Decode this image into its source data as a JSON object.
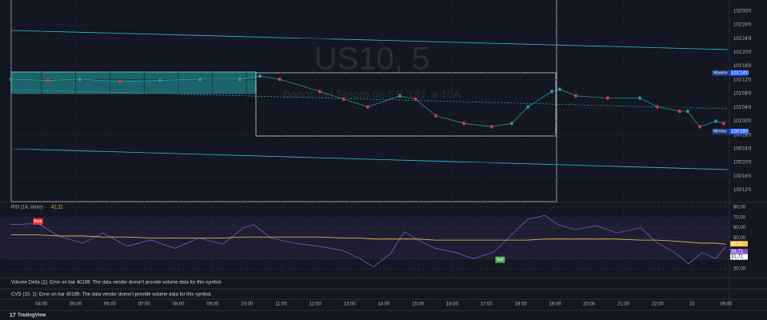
{
  "chart_data": [
    {
      "type": "line",
      "title": "US10, 5",
      "subtitle": "Bonos del Tesoro de EE. UU. a 10A",
      "x": [
        3.11,
        4.19,
        5.12,
        6.29,
        7.46,
        8.63,
        9.79,
        10.38,
        10.96,
        12.13,
        12.83,
        13.53,
        14.47,
        14.93,
        15.52,
        16.34,
        17.15,
        17.74,
        18.21,
        18.91,
        19.14,
        19.61,
        20.54,
        21.48,
        21.99,
        22.64,
        22.88,
        23.23,
        23.7,
        23.93
      ],
      "series": [
        {
          "color": "#26a69a",
          "values": [
            101.38,
            101.37,
            101.38,
            101.36,
            101.37,
            101.38,
            101.38,
            101.41,
            101.38,
            101.27,
            101.2,
            101.13,
            101.23,
            101.2,
            101.05,
            100.98,
            100.95,
            100.98,
            101.13,
            101.27,
            101.29,
            101.23,
            101.21,
            101.21,
            101.13,
            101.09,
            101.09,
            100.95,
            101.0,
            100.98
          ]
        }
      ],
      "down_color": "#f23645",
      "xlim": [
        3.07,
        24.05
      ],
      "xticks": [
        {
          "value": 4,
          "label": "04:00"
        },
        {
          "value": 5,
          "label": "05:00"
        },
        {
          "value": 6,
          "label": "06:00"
        },
        {
          "value": 7,
          "label": "07:00"
        },
        {
          "value": 8,
          "label": "08:00"
        },
        {
          "value": 9,
          "label": "09:00"
        },
        {
          "value": 10,
          "label": "10:00"
        },
        {
          "value": 11,
          "label": "11:00"
        },
        {
          "value": 12,
          "label": "12:00"
        },
        {
          "value": 13,
          "label": "13:00"
        },
        {
          "value": 14,
          "label": "14:00"
        },
        {
          "value": 15,
          "label": "15:00"
        },
        {
          "value": 16,
          "label": "16:00"
        },
        {
          "value": 17,
          "label": "17:00"
        },
        {
          "value": 18,
          "label": "18:00"
        },
        {
          "value": 19,
          "label": "19:00"
        },
        {
          "value": 20,
          "label": "20:00"
        },
        {
          "value": 21,
          "label": "21:00"
        },
        {
          "value": 22,
          "label": "22:00"
        },
        {
          "value": 23,
          "label": "23"
        },
        {
          "value": 24,
          "label": "09:00"
        }
      ],
      "ylim": [
        100.27,
        102.1
      ],
      "yticks": [
        {
          "value": 102,
          "label": "102'00'0"
        },
        {
          "value": 101.875,
          "label": "101'28'0"
        },
        {
          "value": 101.75,
          "label": "101'24'0"
        },
        {
          "value": 101.625,
          "label": "101'20'0"
        },
        {
          "value": 101.5,
          "label": "101'16'0"
        },
        {
          "value": 101.375,
          "label": "101'12'0"
        },
        {
          "value": 101.25,
          "label": "101'08'0"
        },
        {
          "value": 101.125,
          "label": "101'04'0"
        },
        {
          "value": 101,
          "label": "101'00'0"
        },
        {
          "value": 100.875,
          "label": "100'28'0"
        },
        {
          "value": 100.75,
          "label": "100'24'0"
        },
        {
          "value": 100.625,
          "label": "100'20'0"
        },
        {
          "value": 100.5,
          "label": "100'16'0"
        },
        {
          "value": 100.375,
          "label": "100'12'0"
        }
      ],
      "price_labels": [
        {
          "name": "Máximo",
          "value": 101.4375,
          "label": "101'14'0"
        },
        {
          "name": "Mínimo",
          "value": 100.90625,
          "label": "100'29'0"
        }
      ],
      "grid": true
    },
    {
      "type": "line",
      "title": "RSI (14, close)",
      "legend_value": {
        "value": 42.11,
        "label": "42,11"
      },
      "x": [
        3.11,
        3.9,
        4.5,
        5.2,
        5.8,
        6.5,
        7.2,
        7.9,
        8.6,
        9.3,
        9.9,
        10.2,
        10.7,
        11.4,
        12.1,
        12.8,
        13.3,
        13.7,
        14.2,
        14.6,
        15.0,
        15.5,
        16.1,
        16.6,
        17.2,
        17.7,
        18.2,
        18.7,
        19.1,
        19.6,
        20.2,
        20.8,
        21.5,
        22.0,
        22.5,
        22.9,
        23.3,
        23.7,
        24.0
      ],
      "series": [
        {
          "color": "#7e57c2",
          "values": [
            63,
            64,
            52,
            45,
            55,
            42,
            48,
            40,
            50,
            44,
            60,
            63,
            50,
            45,
            42,
            38,
            30,
            22,
            35,
            56,
            48,
            40,
            36,
            30,
            36,
            52,
            68,
            72,
            63,
            58,
            62,
            55,
            60,
            45,
            36,
            25,
            36,
            30,
            42
          ]
        },
        {
          "color": "#f7c548",
          "values": [
            53,
            53,
            52,
            52,
            51,
            51,
            50,
            50,
            50,
            50,
            51,
            51,
            51,
            51,
            51,
            50,
            50,
            49,
            49,
            49,
            49,
            48,
            48,
            48,
            48,
            48,
            48,
            49,
            49,
            49,
            49,
            49,
            48,
            48,
            47,
            46,
            45,
            45,
            44
          ]
        }
      ],
      "xlim": [
        3.07,
        24.05
      ],
      "ylim": [
        10.8,
        83.8
      ],
      "yticks": [
        {
          "value": 80,
          "label": "80,00"
        },
        {
          "value": 70,
          "label": "70,00"
        },
        {
          "value": 60,
          "label": "60,00"
        },
        {
          "value": 50,
          "label": "50,00"
        },
        {
          "value": 30,
          "label": "30,00"
        },
        {
          "value": 20,
          "label": "20,00"
        }
      ],
      "price_labels": [
        {
          "value": 44.42,
          "label": "44,42",
          "color": "#f7c548"
        },
        {
          "value": 36.71,
          "label": "36,71",
          "color": "#7e57c2"
        },
        {
          "value": 31.71,
          "label": "31,71",
          "color": "#ffffff"
        }
      ],
      "annotations": [
        {
          "text": "Bear",
          "x": 3.9,
          "y": 66,
          "color": "#f23645"
        },
        {
          "text": "Bull",
          "x": 17.4,
          "y": 29,
          "color": "#4caf50"
        }
      ]
    }
  ],
  "messages": [
    "Volume Delta (1): Error on bar 40189: The data vendor doesn't provide volume data for this symbol.",
    "CVD (10, 1): Error on bar 40189: The data vendor doesn't provide volume data for this symbol."
  ],
  "brand": "TradingView"
}
